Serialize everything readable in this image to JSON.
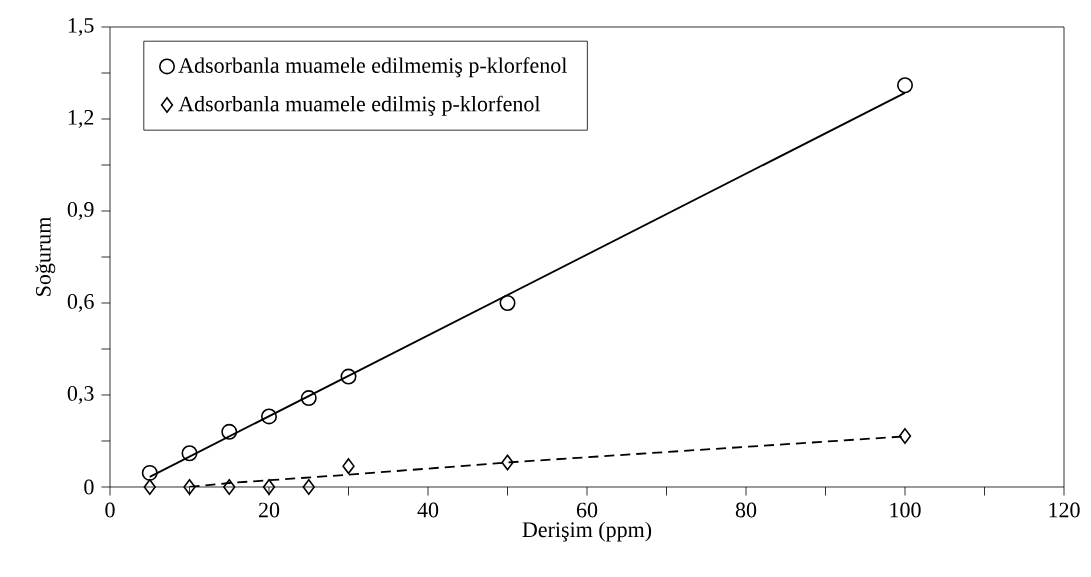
{
  "chart_data": {
    "type": "scatter",
    "xlabel": "Derişim (ppm)",
    "ylabel": "Soğurum",
    "xlim": [
      0,
      120
    ],
    "ylim": [
      0,
      1.5
    ],
    "xticks": [
      0,
      {
        "value": 10,
        "label": null
      },
      20,
      {
        "value": 30,
        "label": null
      },
      40,
      {
        "value": 50,
        "label": null
      },
      60,
      {
        "value": 70,
        "label": null
      },
      80,
      {
        "value": 90,
        "label": null
      },
      100,
      {
        "value": 110,
        "label": null
      },
      120
    ],
    "yticks": [
      0,
      {
        "value": 0.15,
        "label": null
      },
      {
        "value": 0.3,
        "label": "0,3"
      },
      {
        "value": 0.45,
        "label": null
      },
      {
        "value": 0.6,
        "label": "0,6"
      },
      {
        "value": 0.75,
        "label": null
      },
      {
        "value": 0.9,
        "label": "0,9"
      },
      {
        "value": 1.05,
        "label": null
      },
      {
        "value": 1.2,
        "label": "1,2"
      },
      {
        "value": 1.35,
        "label": null
      },
      {
        "value": 1.5,
        "label": "1,5"
      }
    ],
    "grid": false,
    "legend": "top left",
    "series": [
      {
        "name": "Adsorbanla muamele edilmemiş p-klorfenol",
        "marker": "circle",
        "color": "#000000",
        "x": [
          5,
          10,
          15,
          20,
          25,
          30,
          50,
          100
        ],
        "values": [
          0.046,
          0.11,
          0.18,
          0.23,
          0.29,
          0.36,
          0.6,
          1.31
        ]
      },
      {
        "name": "Adsorbanla muamele edilmiş p-klorfenol",
        "marker": "diamond",
        "color": "#000000",
        "x": [
          5,
          10,
          15,
          20,
          25,
          30,
          50,
          100
        ],
        "values": [
          0,
          0,
          0,
          0,
          0,
          0.068,
          0.08,
          0.166
        ]
      },
      {
        "type": "line",
        "marker": "none",
        "line_style": "solid",
        "color": "#000000",
        "x": [
          5,
          100
        ],
        "values": [
          0.033,
          1.285
        ]
      },
      {
        "type": "line",
        "marker": "none",
        "line_style": "dashed",
        "color": "#000000",
        "x": [
          10,
          15,
          30,
          50,
          100
        ],
        "values": [
          0,
          0.013,
          0.04,
          0.08,
          0.165
        ]
      }
    ]
  }
}
